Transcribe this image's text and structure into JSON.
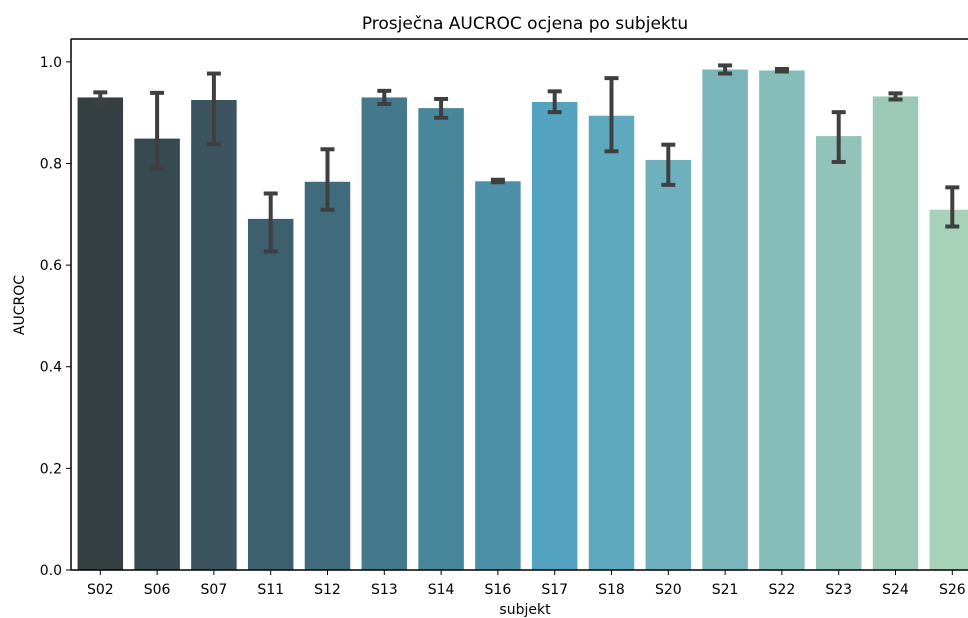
{
  "chart_data": {
    "type": "bar",
    "title": "Prosječna AUCROC ocjena po subjektu",
    "xlabel": "subjekt",
    "ylabel": "AUCROC",
    "ylim": [
      0,
      1.045
    ],
    "yticks": [
      "0.0",
      "0.2",
      "0.4",
      "0.6",
      "0.8",
      "1.0"
    ],
    "grid": false,
    "categories": [
      "S02",
      "S06",
      "S07",
      "S11",
      "S12",
      "S13",
      "S14",
      "S16",
      "S17",
      "S18",
      "S20",
      "S21",
      "S22",
      "S23",
      "S24",
      "S26"
    ],
    "values": [
      0.93,
      0.849,
      0.925,
      0.691,
      0.764,
      0.93,
      0.909,
      0.765,
      0.921,
      0.894,
      0.807,
      0.985,
      0.983,
      0.854,
      0.932,
      0.709
    ],
    "error_low": [
      0.92,
      0.79,
      0.838,
      0.627,
      0.709,
      0.917,
      0.89,
      0.763,
      0.901,
      0.824,
      0.758,
      0.977,
      0.981,
      0.803,
      0.926,
      0.676
    ],
    "error_high": [
      0.94,
      0.939,
      0.977,
      0.741,
      0.828,
      0.943,
      0.927,
      0.768,
      0.942,
      0.968,
      0.837,
      0.993,
      0.986,
      0.901,
      0.938,
      0.753
    ],
    "colors": [
      "#353f41",
      "#374a50",
      "#3b5460",
      "#3d5f6e",
      "#406b7c",
      "#44798c",
      "#488699",
      "#4c91a8",
      "#53a2c0",
      "#5ea9be",
      "#6eb0bd",
      "#7ab5bb",
      "#85bdb9",
      "#92c3b8",
      "#9bc9b5",
      "#a7d2b9"
    ],
    "error_color": "#3f3f3f"
  }
}
